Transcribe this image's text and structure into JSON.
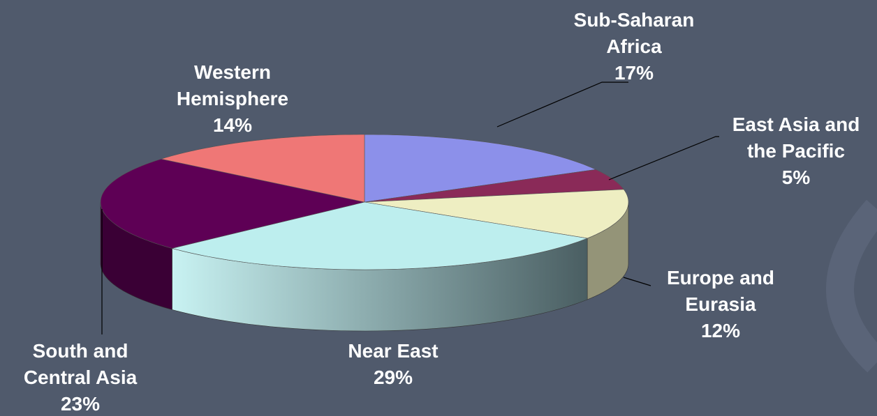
{
  "chart_data": {
    "type": "pie",
    "categories": [
      "Sub-Saharan Africa",
      "East Asia and the Pacific",
      "Europe and Eurasia",
      "Near East",
      "South and Central Asia",
      "Western Hemisphere"
    ],
    "values": [
      17,
      5,
      12,
      29,
      23,
      14
    ],
    "value_labels": [
      "17%",
      "5%",
      "12%",
      "29%",
      "23%",
      "14%"
    ],
    "colors": [
      "#8c90ea",
      "#8a2a58",
      "#eeeec2",
      "#bdeeee",
      "#5e0055",
      "#ef7776"
    ]
  }
}
